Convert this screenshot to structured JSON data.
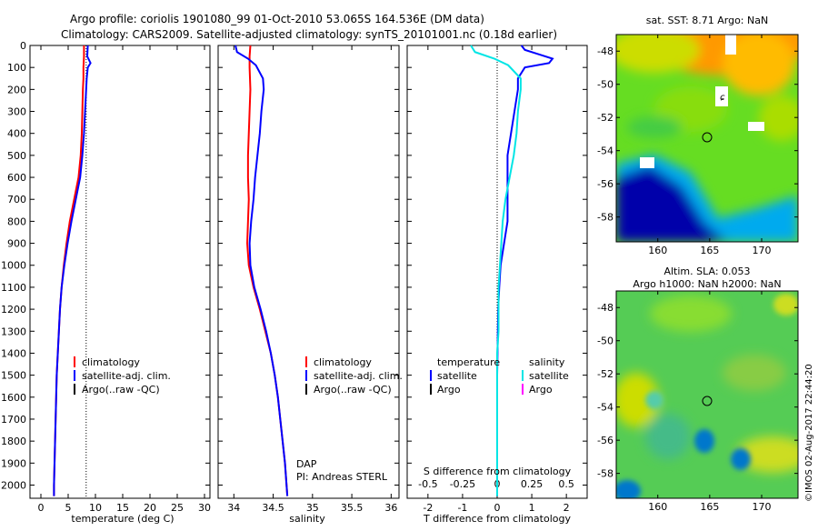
{
  "header": {
    "title_line1": "Argo profile: coriolis 1901080_99 01-Oct-2010 53.065S 164.536E (DM data)",
    "title_line2": "Climatology: CARS2009. Satellite-adjusted climatology: synTS_20101001.nc (0.18d earlier)"
  },
  "footer_stamp": "©IMOS 02-Aug-2017 22:44:20",
  "credit": {
    "line1": "DAP",
    "line2": "PI: Andreas STERL"
  },
  "colors": {
    "climatology": "#ff0000",
    "satellite": "#0000ff",
    "argo": "#000000",
    "sal_satellite": "#00e5e5",
    "sal_argo": "#ff00ff"
  },
  "chart_data": [
    {
      "type": "line",
      "id": "temperature",
      "xlabel": "temperature (deg C)",
      "xlim": [
        -2,
        31
      ],
      "ylim": [
        0,
        2060
      ],
      "y_inverted": true,
      "xticks": [
        0,
        5,
        10,
        15,
        20,
        25,
        30
      ],
      "yticks": [
        0,
        100,
        200,
        300,
        400,
        500,
        600,
        700,
        800,
        900,
        1000,
        1100,
        1200,
        1300,
        1400,
        1500,
        1600,
        1700,
        1800,
        1900,
        2000
      ],
      "legend": [
        "climatology",
        "satellite-adj. clim.",
        "Argo(..raw -QC)"
      ],
      "series": [
        {
          "name": "climatology",
          "color": "#ff0000",
          "depth": [
            0,
            50,
            100,
            150,
            200,
            300,
            400,
            500,
            600,
            700,
            800,
            900,
            1000,
            1100,
            1200,
            1300,
            1400,
            1500,
            1600,
            1700,
            1800,
            1900,
            2000,
            2050
          ],
          "values": [
            7.9,
            7.9,
            7.8,
            7.8,
            7.7,
            7.6,
            7.5,
            7.3,
            6.9,
            6.1,
            5.3,
            4.7,
            4.2,
            3.8,
            3.5,
            3.3,
            3.1,
            2.9,
            2.8,
            2.7,
            2.6,
            2.5,
            2.4,
            2.4
          ]
        },
        {
          "name": "satellite-adj. clim.",
          "color": "#0000ff",
          "depth": [
            0,
            50,
            80,
            100,
            150,
            200,
            300,
            400,
            500,
            600,
            700,
            800,
            900,
            1000,
            1100,
            1200,
            1300,
            1400,
            1500,
            1600,
            1700,
            1800,
            1900,
            2000,
            2050
          ],
          "values": [
            8.6,
            8.5,
            9.1,
            8.6,
            8.4,
            8.3,
            8.1,
            7.9,
            7.6,
            7.2,
            6.4,
            5.6,
            4.9,
            4.3,
            3.8,
            3.5,
            3.3,
            3.1,
            2.9,
            2.8,
            2.7,
            2.6,
            2.5,
            2.4,
            2.4
          ]
        }
      ],
      "reference_x": 8.3
    },
    {
      "type": "line",
      "id": "salinity",
      "xlabel": "salinity",
      "xlim": [
        33.8,
        36.1
      ],
      "ylim": [
        0,
        2060
      ],
      "y_inverted": true,
      "xticks": [
        34,
        34.5,
        35,
        35.5,
        36
      ],
      "legend": [
        "climatology",
        "satellite-adj. clim.",
        "Argo(..raw -QC)"
      ],
      "series": [
        {
          "name": "climatology",
          "color": "#ff0000",
          "depth": [
            0,
            50,
            100,
            200,
            300,
            400,
            500,
            600,
            700,
            800,
            900,
            1000,
            1100,
            1200,
            1300,
            1400,
            1500,
            1600,
            1700,
            1800,
            1900,
            2000,
            2050
          ],
          "values": [
            34.21,
            34.2,
            34.2,
            34.21,
            34.2,
            34.19,
            34.18,
            34.18,
            34.19,
            34.18,
            34.17,
            34.19,
            34.25,
            34.33,
            34.4,
            34.47,
            34.52,
            34.56,
            34.59,
            34.62,
            34.65,
            34.67,
            34.68
          ]
        },
        {
          "name": "satellite-adj. clim.",
          "color": "#0000ff",
          "depth": [
            0,
            30,
            60,
            90,
            150,
            200,
            300,
            400,
            500,
            600,
            700,
            800,
            900,
            1000,
            1100,
            1200,
            1300,
            1400,
            1500,
            1600,
            1700,
            1800,
            1900,
            2000,
            2050
          ],
          "values": [
            34.02,
            34.04,
            34.18,
            34.28,
            34.37,
            34.38,
            34.35,
            34.33,
            34.3,
            34.27,
            34.25,
            34.22,
            34.2,
            34.21,
            34.26,
            34.34,
            34.41,
            34.47,
            34.52,
            34.56,
            34.59,
            34.62,
            34.65,
            34.67,
            34.68
          ]
        }
      ]
    },
    {
      "type": "line",
      "id": "difference",
      "xlabel": "T difference from climatology",
      "xlabel_top": "S difference from climatology",
      "xlim": [
        -2.6,
        2.6
      ],
      "ylim": [
        0,
        2060
      ],
      "y_inverted": true,
      "xticks": [
        -2,
        -1,
        0,
        1,
        2
      ],
      "xticks_top": [
        -0.5,
        -0.25,
        0,
        0.25,
        0.5
      ],
      "legend_temperature": {
        "title": "temperature",
        "items": [
          "satellite",
          "Argo"
        ]
      },
      "legend_salinity": {
        "title": "salinity",
        "items": [
          "satellite",
          "Argo"
        ]
      },
      "series": [
        {
          "name": "satellite",
          "kind": "temperature",
          "color": "#0000ff",
          "depth": [
            0,
            20,
            40,
            60,
            80,
            100,
            150,
            200,
            300,
            400,
            500,
            600,
            700,
            800,
            900,
            1000,
            1100,
            1200,
            1300,
            1400,
            1500,
            2050
          ],
          "values": [
            0.7,
            0.8,
            1.2,
            1.6,
            1.5,
            0.8,
            0.6,
            0.6,
            0.5,
            0.4,
            0.3,
            0.3,
            0.3,
            0.3,
            0.2,
            0.1,
            0.06,
            0.03,
            0.02,
            0.01,
            0,
            0
          ]
        },
        {
          "name": "satellite",
          "kind": "salinity",
          "color": "#00e5e5",
          "depth": [
            0,
            30,
            60,
            90,
            150,
            200,
            300,
            400,
            500,
            600,
            700,
            800,
            900,
            1000,
            1100,
            1200,
            1300,
            1400,
            1500,
            2050
          ],
          "values": [
            -0.19,
            -0.16,
            -0.02,
            0.08,
            0.17,
            0.17,
            0.15,
            0.14,
            0.12,
            0.09,
            0.06,
            0.04,
            0.03,
            0.02,
            0.01,
            0.01,
            0.01,
            0,
            0,
            0
          ]
        }
      ]
    },
    {
      "type": "heatmap",
      "id": "sst_map",
      "title": "sat. SST: 8.71  Argo: NaN",
      "xlim": [
        156,
        173.5
      ],
      "ylim": [
        -59.5,
        -47
      ],
      "xticks": [
        160,
        165,
        170
      ],
      "yticks": [
        -48,
        -50,
        -52,
        -54,
        -56,
        -58
      ],
      "argo_position": [
        164.536,
        -53.065
      ]
    },
    {
      "type": "heatmap",
      "id": "sla_map",
      "title_line1": "Altim. SLA: 0.053",
      "title_line2": "Argo h1000: NaN h2000: NaN",
      "xlim": [
        156,
        173.5
      ],
      "ylim": [
        -59.5,
        -47
      ],
      "xticks": [
        160,
        165,
        170
      ],
      "yticks": [
        -48,
        -50,
        -52,
        -54,
        -56,
        -58
      ],
      "argo_position": [
        164.536,
        -53.065
      ]
    }
  ]
}
